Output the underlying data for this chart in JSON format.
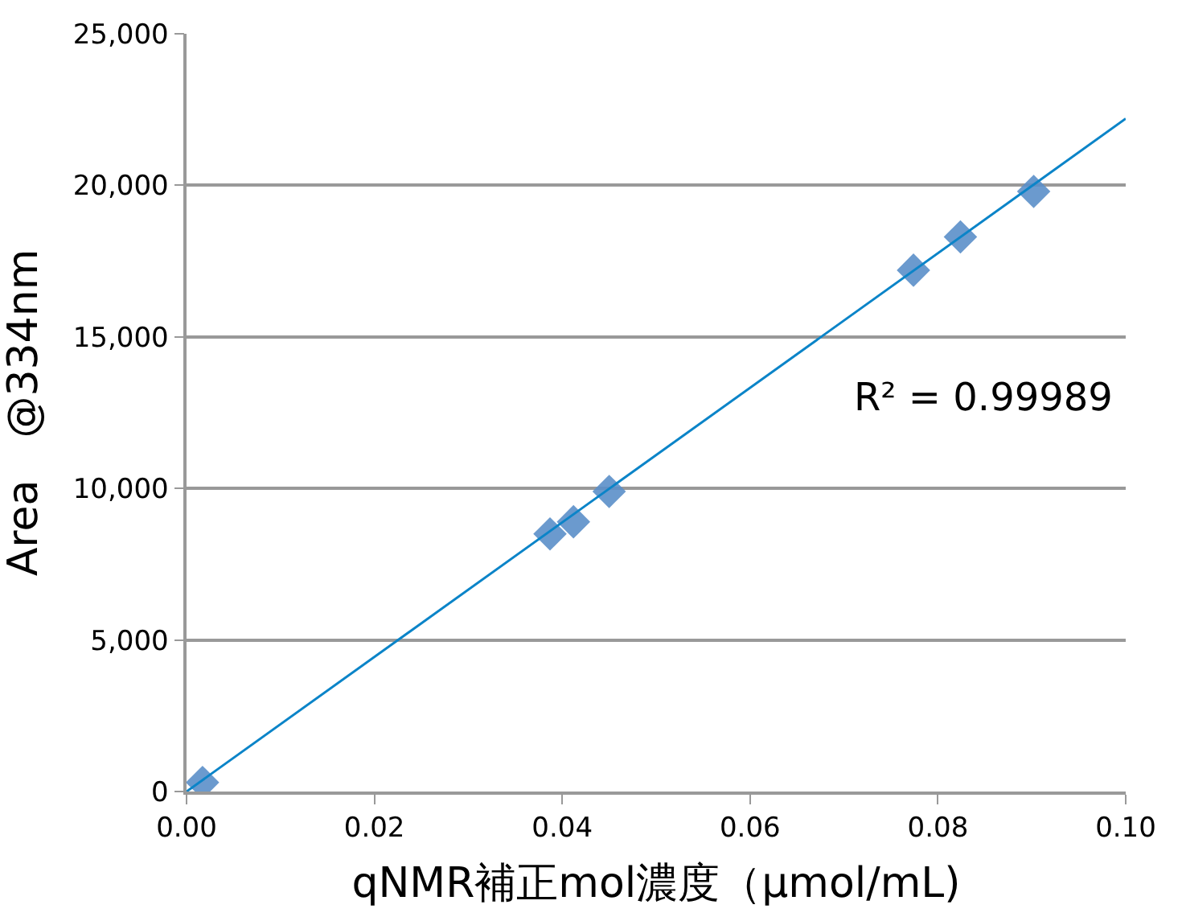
{
  "chart_data": {
    "type": "scatter",
    "xlabel": "qNMR補正mol濃度（μmol/mL)",
    "ylabel": "Area　@334nm",
    "annotations": [
      "R² = 0.99989"
    ],
    "xlim": [
      0,
      0.1
    ],
    "xticks": [
      {
        "value": 0,
        "label": "0.00"
      },
      {
        "value": 0.02,
        "label": "0.02"
      },
      {
        "value": 0.04,
        "label": "0.04"
      },
      {
        "value": 0.06,
        "label": "0.06"
      },
      {
        "value": 0.08,
        "label": "0.08"
      },
      {
        "value": 0.1,
        "label": "0.10"
      }
    ],
    "ylim": [
      0,
      25000
    ],
    "yticks": [
      {
        "value": 0,
        "label": "0"
      },
      {
        "value": 5000,
        "label": "5,000"
      },
      {
        "value": 10000,
        "label": "10,000"
      },
      {
        "value": 15000,
        "label": "15,000"
      },
      {
        "value": 20000,
        "label": "20,000"
      },
      {
        "value": 25000,
        "label": "25,000"
      }
    ],
    "grid": "y",
    "series": [
      {
        "color": "#5b8fc9",
        "marker": "diamond",
        "x": [
          0.0017,
          0.0387,
          0.0412,
          0.045,
          0.0774,
          0.0824,
          0.0902
        ],
        "values": [
          300,
          8500,
          8900,
          9900,
          17200,
          18300,
          19800
        ]
      },
      {
        "type": "line",
        "marker": "none",
        "color": "#0b84c8",
        "x": [
          0,
          0.1
        ],
        "values": [
          0,
          22200
        ]
      }
    ]
  }
}
